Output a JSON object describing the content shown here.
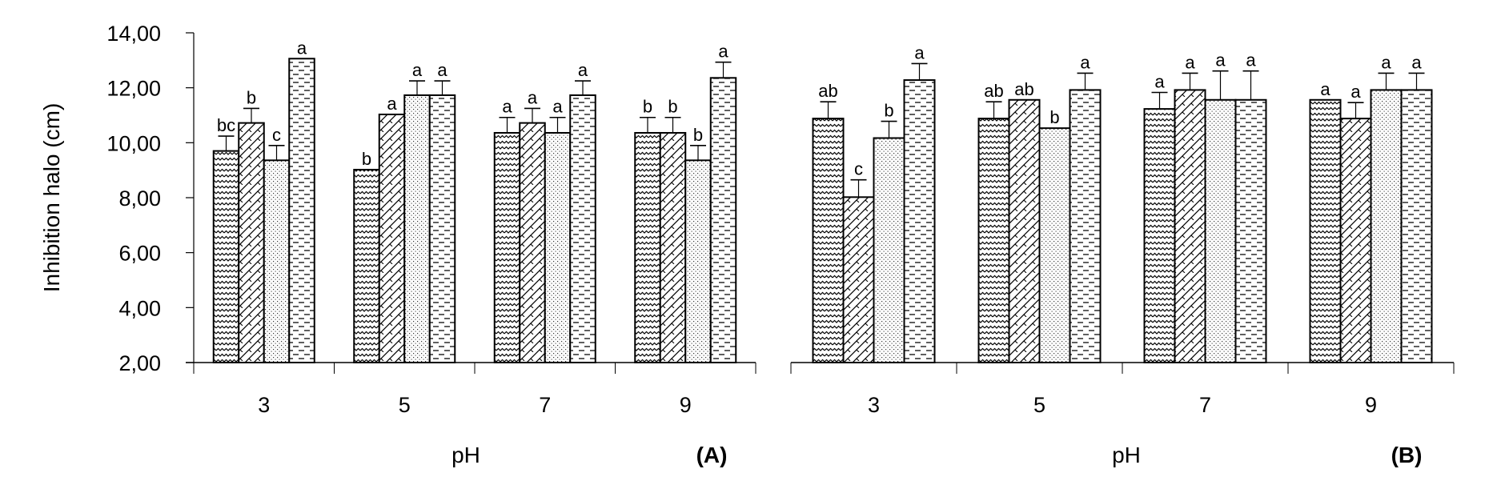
{
  "chart_data": [
    {
      "type": "bar",
      "panel_label": "(A)",
      "xlabel": "pH",
      "ylabel": "Inhibition halo (cm)",
      "ylim": [
        2,
        14
      ],
      "yticks": [
        "2,00",
        "4,00",
        "6,00",
        "8,00",
        "10,00",
        "12,00",
        "14,00"
      ],
      "categories": [
        "3",
        "5",
        "7",
        "9"
      ],
      "series": [
        {
          "pattern": "wave",
          "values": [
            9.7,
            9.02,
            10.36,
            10.36
          ],
          "error": [
            0.54,
            null,
            0.56,
            0.56
          ],
          "letters": [
            "bc",
            "b",
            "a",
            "b"
          ]
        },
        {
          "pattern": "diagonal",
          "values": [
            10.72,
            11.03,
            10.72,
            10.36
          ],
          "error": [
            0.53,
            null,
            0.53,
            0.56
          ],
          "letters": [
            "b",
            "a",
            "a",
            "b"
          ]
        },
        {
          "pattern": "dots",
          "values": [
            9.36,
            11.73,
            10.36,
            9.36
          ],
          "error": [
            0.54,
            0.52,
            0.56,
            0.54
          ],
          "letters": [
            "c",
            "a",
            "a",
            "b"
          ]
        },
        {
          "pattern": "dashes",
          "values": [
            13.06,
            11.73,
            11.73,
            12.36
          ],
          "error": [
            null,
            0.52,
            0.52,
            0.57
          ],
          "letters": [
            "a",
            "a",
            "a",
            "a"
          ]
        }
      ],
      "grid": false,
      "legend": "none"
    },
    {
      "type": "bar",
      "panel_label": "(B)",
      "xlabel": "pH",
      "ylim": [
        2,
        14
      ],
      "categories": [
        "3",
        "5",
        "7",
        "9"
      ],
      "series": [
        {
          "pattern": "wave",
          "values": [
            10.88,
            10.88,
            11.23,
            11.56
          ],
          "error": [
            0.61,
            0.61,
            0.6,
            null
          ],
          "letters": [
            "ab",
            "ab",
            "a",
            "a"
          ]
        },
        {
          "pattern": "diagonal",
          "values": [
            8.02,
            11.56,
            11.92,
            10.88
          ],
          "error": [
            0.63,
            null,
            0.61,
            0.58
          ],
          "letters": [
            "c",
            "ab",
            "a",
            "a"
          ]
        },
        {
          "pattern": "dots",
          "values": [
            10.17,
            10.53,
            11.56,
            11.92
          ],
          "error": [
            0.61,
            null,
            1.05,
            0.61
          ],
          "letters": [
            "b",
            "b",
            "a",
            "a"
          ]
        },
        {
          "pattern": "dashes",
          "values": [
            12.28,
            11.92,
            11.56,
            11.92
          ],
          "error": [
            0.6,
            0.61,
            1.05,
            0.61
          ],
          "letters": [
            "a",
            "a",
            "a",
            "a"
          ]
        }
      ],
      "grid": false,
      "legend": "none"
    }
  ]
}
